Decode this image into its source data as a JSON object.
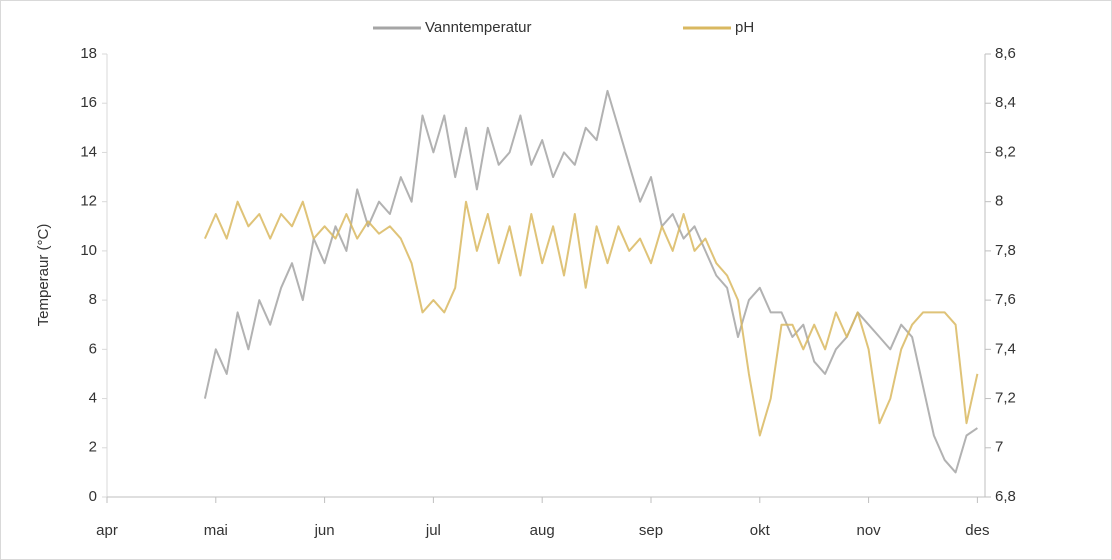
{
  "chart_data": {
    "type": "line",
    "ylabel": "Temperaur (°C)",
    "x": [
      0.9,
      1.0,
      1.1,
      1.2,
      1.3,
      1.4,
      1.5,
      1.6,
      1.7,
      1.8,
      1.9,
      2.0,
      2.1,
      2.2,
      2.3,
      2.4,
      2.5,
      2.6,
      2.7,
      2.8,
      2.9,
      3.0,
      3.1,
      3.2,
      3.3,
      3.4,
      3.5,
      3.6,
      3.7,
      3.8,
      3.9,
      4.0,
      4.1,
      4.2,
      4.3,
      4.4,
      4.5,
      4.6,
      4.7,
      4.8,
      4.9,
      5.0,
      5.1,
      5.2,
      5.3,
      5.4,
      5.5,
      5.6,
      5.7,
      5.8,
      5.9,
      6.0,
      6.1,
      6.2,
      6.3,
      6.4,
      6.5,
      6.6,
      6.7,
      6.8,
      6.9,
      7.0,
      7.1,
      7.2,
      7.3,
      7.4,
      7.5,
      7.6,
      7.7,
      7.8,
      7.9,
      8.0
    ],
    "xlim": [
      0,
      8.07
    ],
    "xticks": [
      {
        "value": 0,
        "label": "apr"
      },
      {
        "value": 1,
        "label": "mai"
      },
      {
        "value": 2,
        "label": "jun"
      },
      {
        "value": 3,
        "label": "jul"
      },
      {
        "value": 4,
        "label": "aug"
      },
      {
        "value": 5,
        "label": "sep"
      },
      {
        "value": 6,
        "label": "okt"
      },
      {
        "value": 7,
        "label": "nov"
      },
      {
        "value": 8,
        "label": "des"
      }
    ],
    "ylim": [
      0,
      18
    ],
    "yticks": [
      0,
      2,
      4,
      6,
      8,
      10,
      12,
      14,
      16,
      18
    ],
    "y2lim": [
      6.8,
      8.6
    ],
    "y2ticks": [
      {
        "value": 6.8,
        "label": "6,8"
      },
      7,
      {
        "value": 7.2,
        "label": "7,2"
      },
      {
        "value": 7.4,
        "label": "7,4"
      },
      {
        "value": 7.6,
        "label": "7,6"
      },
      {
        "value": 7.8,
        "label": "7,8"
      },
      8,
      {
        "value": 8.2,
        "label": "8,2"
      },
      {
        "value": 8.4,
        "label": "8,4"
      },
      {
        "value": 8.6,
        "label": "8,6"
      }
    ],
    "legend": "top",
    "series": [
      {
        "name": "Vanntemperatur",
        "color": "#a5a5a5",
        "values": [
          4,
          6,
          5,
          7.5,
          6,
          8,
          7,
          8.5,
          9.5,
          8,
          10.5,
          9.5,
          11,
          10,
          12.5,
          11,
          12,
          11.5,
          13,
          12,
          15.5,
          14,
          15.5,
          13,
          15,
          12.5,
          15,
          13.5,
          14,
          15.5,
          13.5,
          14.5,
          13,
          14,
          13.5,
          15,
          14.5,
          16.5,
          15,
          13.5,
          12,
          13,
          11,
          11.5,
          10.5,
          11,
          10,
          9,
          8.5,
          6.5,
          8,
          8.5,
          7.5,
          7.5,
          6.5,
          7,
          5.5,
          5,
          6,
          6.5,
          7.5,
          7,
          6.5,
          6,
          7,
          6.5,
          4.5,
          2.5,
          1.5,
          1,
          2.5,
          2.8
        ]
      },
      {
        "name": "pH",
        "color": "#d9b860",
        "axis": "y2",
        "values": [
          7.85,
          7.95,
          7.85,
          8.0,
          7.9,
          7.95,
          7.85,
          7.95,
          7.9,
          8.0,
          7.85,
          7.9,
          7.85,
          7.95,
          7.85,
          7.92,
          7.87,
          7.9,
          7.85,
          7.75,
          7.55,
          7.6,
          7.55,
          7.65,
          8.0,
          7.8,
          7.95,
          7.75,
          7.9,
          7.7,
          7.95,
          7.75,
          7.9,
          7.7,
          7.95,
          7.65,
          7.9,
          7.75,
          7.9,
          7.8,
          7.85,
          7.75,
          7.9,
          7.8,
          7.95,
          7.8,
          7.85,
          7.75,
          7.7,
          7.6,
          7.3,
          7.05,
          7.2,
          7.5,
          7.5,
          7.4,
          7.5,
          7.4,
          7.55,
          7.45,
          7.55,
          7.4,
          7.1,
          7.2,
          7.4,
          7.5,
          7.55,
          7.55,
          7.55,
          7.5,
          7.1,
          7.3
        ]
      }
    ]
  }
}
